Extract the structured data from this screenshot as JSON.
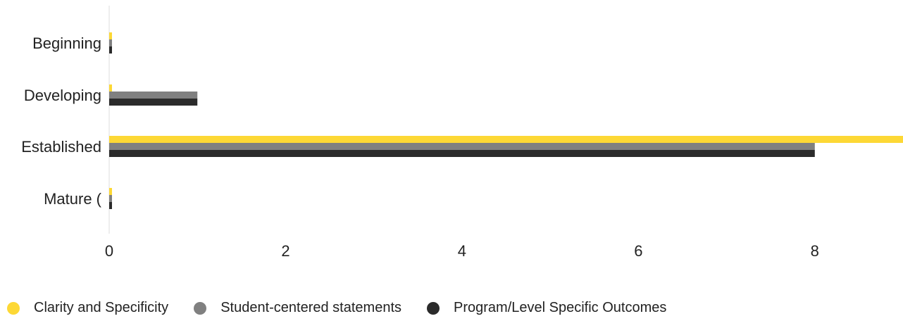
{
  "chart_data": {
    "type": "bar",
    "orientation": "horizontal",
    "categories": [
      "Beginning",
      "Developing",
      "Established",
      "Mature ("
    ],
    "series": [
      {
        "name": "Clarity and Specificity",
        "color": "#FDD835",
        "values": [
          0,
          0,
          9,
          0
        ]
      },
      {
        "name": "Student-centered statements",
        "color": "#808080",
        "values": [
          0,
          1,
          8,
          0
        ]
      },
      {
        "name": "Program/Level Specific Outcomes",
        "color": "#2B2B2B",
        "values": [
          0,
          1,
          8,
          0
        ]
      }
    ],
    "xticks": [
      "0",
      "2",
      "4",
      "6",
      "8"
    ],
    "xlim": [
      0,
      9
    ],
    "grid": false,
    "legend_position": "bottom"
  }
}
